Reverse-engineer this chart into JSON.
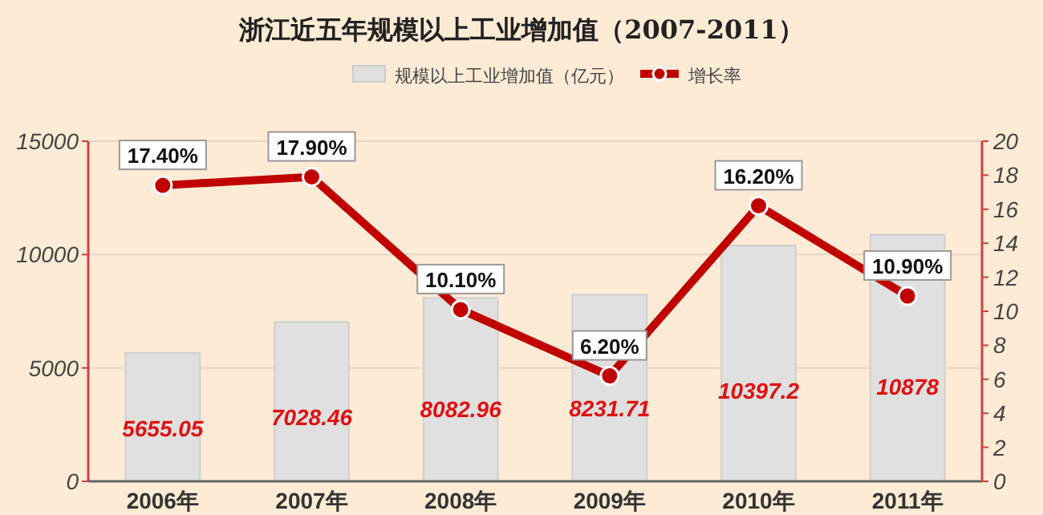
{
  "chart_data": {
    "type": "bar",
    "title": "浙江近五年规模以上工业增加值（2007-2011）",
    "categories": [
      "2006年",
      "2007年",
      "2008年",
      "2009年",
      "2010年",
      "2011年"
    ],
    "series": [
      {
        "name": "规模以上工业增加值（亿元）",
        "color": "#e0e0e0",
        "values": [
          5655.05,
          7028.46,
          8082.96,
          8231.71,
          10397.2,
          10878
        ],
        "value_labels": [
          "5655.05",
          "7028.46",
          "8082.96",
          "8231.71",
          "10397.2",
          "10878"
        ]
      },
      {
        "name": "增长率",
        "type": "line",
        "axis": "y2",
        "marker": "circle",
        "color": "#c00000",
        "values": [
          17.4,
          17.9,
          10.1,
          6.2,
          16.2,
          10.9
        ],
        "value_labels": [
          "17.40%",
          "17.90%",
          "10.10%",
          "6.20%",
          "16.20%",
          "10.90%"
        ]
      }
    ],
    "ylim": [
      0,
      15000
    ],
    "yticks": [
      0,
      5000,
      10000,
      15000
    ],
    "y2lim": [
      0,
      20
    ],
    "y2ticks": [
      0,
      2,
      4,
      6,
      8,
      10,
      12,
      14,
      16,
      18,
      20
    ],
    "grid": "y",
    "legend": "top"
  }
}
